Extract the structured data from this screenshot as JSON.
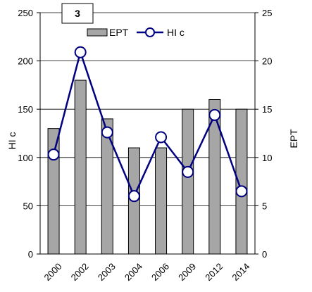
{
  "panel_label": "3",
  "chart_data": {
    "type": "bar",
    "categories": [
      "2000",
      "2002",
      "2003",
      "2004",
      "2006",
      "2009",
      "2012",
      "2014"
    ],
    "series": [
      {
        "name": "EPT",
        "type": "bar",
        "axis": "right",
        "values": [
          13,
          18,
          14,
          11,
          11,
          15,
          16,
          15
        ],
        "color": "#a6a6a6"
      },
      {
        "name": "HI c",
        "type": "line",
        "axis": "left",
        "values": [
          103,
          209,
          126,
          60,
          121,
          85,
          144,
          65
        ],
        "color": "#000080"
      }
    ],
    "ylabel": "HI c",
    "y2label": "EPT",
    "ylim": [
      0,
      250
    ],
    "y2lim": [
      0,
      25
    ],
    "yticks": [
      "0",
      "50",
      "100",
      "150",
      "200",
      "250"
    ],
    "y2ticks": [
      "0",
      "5",
      "10",
      "15",
      "20",
      "25"
    ],
    "grid": true,
    "legend": "top-center"
  }
}
